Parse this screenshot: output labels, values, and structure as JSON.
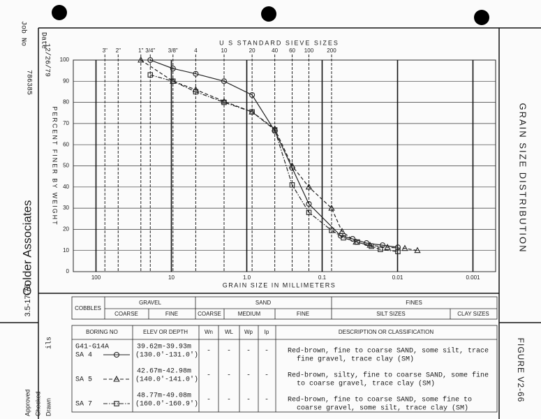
{
  "chart_data": {
    "type": "line",
    "x2_label": "U S STANDARD SIEVE SIZES",
    "xlabel": "GRAIN SIZE IN MILLIMETERS",
    "ylabel": "PERCENT FINER BY WEIGHT",
    "xscale": "log",
    "xlim": [
      200,
      0.0005
    ],
    "ylim": [
      0,
      100
    ],
    "xticks": [
      100,
      10,
      {
        "value": 1,
        "label": "1.0"
      },
      0.1,
      0.01,
      0.001
    ],
    "yticks": [
      0,
      10,
      20,
      30,
      40,
      50,
      60,
      70,
      80,
      90,
      100
    ],
    "x2ticks": [
      {
        "value": 76.2,
        "label": "3\""
      },
      {
        "value": 50.8,
        "label": "2\""
      },
      {
        "value": 25.4,
        "label": "1\""
      },
      {
        "value": 19.05,
        "label": "3/4\""
      },
      {
        "value": 9.525,
        "label": "3/8\""
      },
      {
        "value": 4.75,
        "label": "4"
      },
      {
        "value": 2.0,
        "label": "10"
      },
      {
        "value": 0.85,
        "label": "20"
      },
      {
        "value": 0.425,
        "label": "40"
      },
      {
        "value": 0.25,
        "label": "60"
      },
      {
        "value": 0.15,
        "label": "100"
      },
      {
        "value": 0.075,
        "label": "200"
      }
    ],
    "grid": true,
    "series": [
      {
        "name": "SA 4",
        "color": "#222222",
        "marker": "circle",
        "linestyle": "solid",
        "x": [
          19.05,
          9.525,
          4.75,
          2.0,
          0.85,
          0.425,
          0.25,
          0.15,
          0.0569,
          0.0395,
          0.0258,
          0.0158,
          0.0099
        ],
        "values": [
          100,
          96,
          93.5,
          90,
          83.5,
          66.5,
          49,
          32,
          17,
          15.5,
          13.5,
          12.5,
          11.5
        ]
      },
      {
        "name": "SA 5",
        "color": "#222222",
        "marker": "triangle",
        "linestyle": "dashed",
        "x": [
          25.4,
          9.525,
          4.75,
          2.0,
          0.85,
          0.425,
          0.25,
          0.15,
          0.075,
          0.0545,
          0.0356,
          0.0232,
          0.0136,
          0.008,
          0.00545
        ],
        "values": [
          100,
          90,
          86,
          80.5,
          75.5,
          67.5,
          50,
          40,
          30,
          19,
          14,
          12.5,
          11.5,
          11,
          10
        ]
      },
      {
        "name": "SA 7",
        "color": "#222222",
        "marker": "square",
        "linestyle": "dashdot",
        "x": [
          19.05,
          9.525,
          4.75,
          2.0,
          0.85,
          0.425,
          0.25,
          0.15,
          0.075,
          0.0522,
          0.0341,
          0.0222,
          0.0169,
          0.0099
        ],
        "values": [
          93,
          90,
          85,
          80,
          75.5,
          67,
          41,
          28,
          19.5,
          16,
          14,
          12,
          10.5,
          9.5
        ]
      }
    ]
  },
  "header": {
    "date_label": "Date",
    "date": "12/26/79",
    "job_label": "Job No",
    "job": "786385",
    "company": "Golder Associates",
    "form_no": "3.5-17-75",
    "drawn_label": "Drawn",
    "drawn": "ils",
    "checked_label": "Checked",
    "approved_label": "Approved"
  },
  "figure": {
    "title": "GRAIN SIZE DISTRIBUTION",
    "number": "FIGURE V2-66"
  },
  "classification": {
    "cobbles": "COBBLES",
    "gravel": "GRAVEL",
    "gravel_coarse": "COARSE",
    "gravel_fine": "FINE",
    "sand": "SAND",
    "sand_coarse": "COARSE",
    "sand_medium": "MEDIUM",
    "sand_fine": "FINE",
    "fines": "FINES",
    "silt": "SILT SIZES",
    "clay": "CLAY SIZES"
  },
  "borings": {
    "headers": [
      "BORING NO",
      "ELEV OR DEPTH",
      "Wn",
      "WL",
      "Wp",
      "Ip",
      "DESCRIPTION OR CLASSIFICATION"
    ],
    "group": "G41-G14A",
    "rows": [
      {
        "elev": "39.62m-39.93m",
        "elev_ft": "(130.0'-131.0')",
        "cells": [
          "-",
          "-",
          "-",
          "-"
        ],
        "description": [
          "Red-brown, fine to coarse SAND, some silt, trace",
          "fine gravel, trace clay  (SM)"
        ]
      },
      {
        "elev": "42.67m-42.98m",
        "elev_ft": "(140.0'-141.0')",
        "cells": [
          "-",
          "-",
          "-",
          "-"
        ],
        "description": [
          "Red-brown, silty, fine to coarse SAND, some fine",
          "to coarse gravel, trace clay  (SM)"
        ]
      },
      {
        "elev": "48.77m-49.08m",
        "elev_ft": "(160.0'-160.9')",
        "cells": [
          "-",
          "-",
          "-",
          "-"
        ],
        "description": [
          "Red-brown, fine to coarse SAND, some fine to",
          "coarse gravel, some silt, trace clay  (SM)"
        ]
      }
    ]
  }
}
